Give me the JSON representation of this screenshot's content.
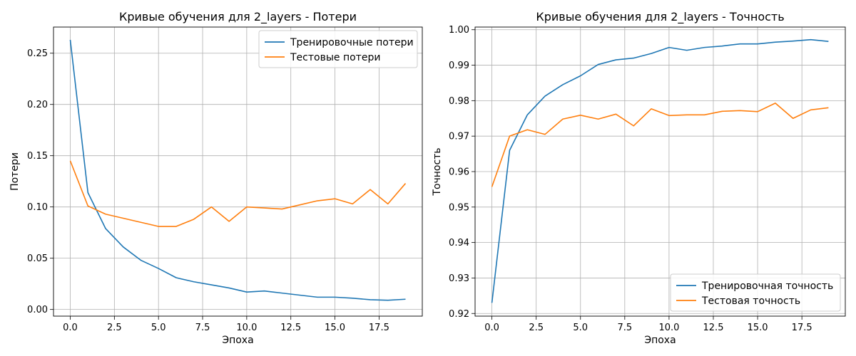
{
  "chart_data": [
    {
      "type": "line",
      "title": "Кривые обучения для 2_layers - Потери",
      "xlabel": "Эпоха",
      "ylabel": "Потери",
      "xlim": [
        -0.95,
        19.95
      ],
      "ylim": [
        -0.0065,
        0.2755
      ],
      "xticks": [
        0,
        2.5,
        5,
        7.5,
        10,
        12.5,
        15,
        17.5
      ],
      "xtick_labels": [
        "0.0",
        "2.5",
        "5.0",
        "7.5",
        "10.0",
        "12.5",
        "15.0",
        "17.5"
      ],
      "yticks": [
        0,
        0.05,
        0.1,
        0.15,
        0.2,
        0.25
      ],
      "ytick_labels": [
        "0.00",
        "0.05",
        "0.10",
        "0.15",
        "0.20",
        "0.25"
      ],
      "grid": true,
      "legend_position": "top-right",
      "x": [
        0,
        1,
        2,
        3,
        4,
        5,
        6,
        7,
        8,
        9,
        10,
        11,
        12,
        13,
        14,
        15,
        16,
        17,
        18,
        19
      ],
      "series": [
        {
          "name": "Тренировочные потери",
          "color": "#1f77b4",
          "values": [
            0.263,
            0.114,
            0.079,
            0.061,
            0.048,
            0.04,
            0.031,
            0.027,
            0.024,
            0.021,
            0.017,
            0.018,
            0.016,
            0.014,
            0.012,
            0.012,
            0.011,
            0.0095,
            0.009,
            0.01
          ]
        },
        {
          "name": "Тестовые потери",
          "color": "#ff7f0e",
          "values": [
            0.145,
            0.101,
            0.093,
            0.089,
            0.085,
            0.081,
            0.081,
            0.088,
            0.1,
            0.086,
            0.1,
            0.099,
            0.098,
            0.102,
            0.106,
            0.108,
            0.103,
            0.117,
            0.103,
            0.123
          ]
        }
      ]
    },
    {
      "type": "line",
      "title": "Кривые обучения для 2_layers - Точность",
      "xlabel": "Эпоха",
      "ylabel": "Точность",
      "xlim": [
        -0.95,
        19.95
      ],
      "ylim": [
        0.91925,
        1.00075
      ],
      "xticks": [
        0,
        2.5,
        5,
        7.5,
        10,
        12.5,
        15,
        17.5
      ],
      "xtick_labels": [
        "0.0",
        "2.5",
        "5.0",
        "7.5",
        "10.0",
        "12.5",
        "15.0",
        "17.5"
      ],
      "yticks": [
        0.92,
        0.93,
        0.94,
        0.95,
        0.96,
        0.97,
        0.98,
        0.99,
        1.0
      ],
      "ytick_labels": [
        "0.92",
        "0.93",
        "0.94",
        "0.95",
        "0.96",
        "0.97",
        "0.98",
        "0.99",
        "1.00"
      ],
      "grid": true,
      "legend_position": "bottom-right",
      "x": [
        0,
        1,
        2,
        3,
        4,
        5,
        6,
        7,
        8,
        9,
        10,
        11,
        12,
        13,
        14,
        15,
        16,
        17,
        18,
        19
      ],
      "series": [
        {
          "name": "Тренировочная точность",
          "color": "#1f77b4",
          "values": [
            0.923,
            0.966,
            0.976,
            0.9813,
            0.9845,
            0.987,
            0.9902,
            0.9915,
            0.992,
            0.9933,
            0.995,
            0.9942,
            0.995,
            0.9954,
            0.996,
            0.996,
            0.9965,
            0.9968,
            0.9972,
            0.9967
          ]
        },
        {
          "name": "Тестовая точность",
          "color": "#ff7f0e",
          "values": [
            0.9557,
            0.97,
            0.9718,
            0.9705,
            0.9748,
            0.9759,
            0.9748,
            0.9762,
            0.9729,
            0.9777,
            0.9758,
            0.976,
            0.976,
            0.977,
            0.9772,
            0.9769,
            0.9793,
            0.975,
            0.9774,
            0.978
          ]
        }
      ]
    }
  ]
}
